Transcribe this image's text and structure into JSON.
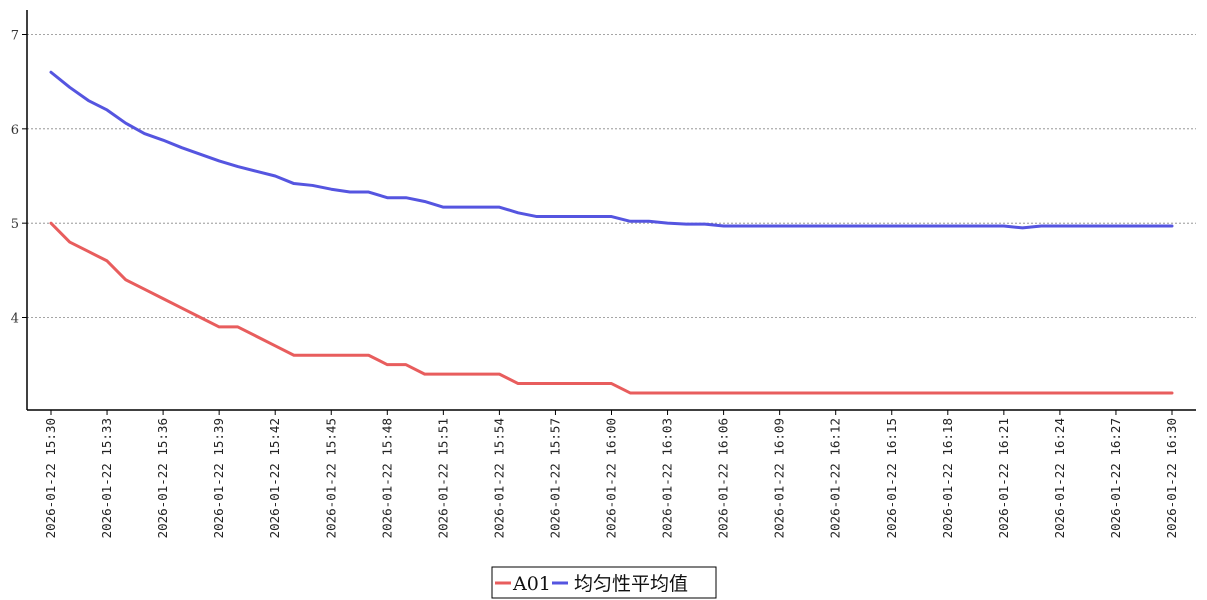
{
  "chart_data": {
    "type": "line",
    "title": "",
    "xlabel": "",
    "ylabel": "",
    "ylim": [
      2.9,
      7.25
    ],
    "yticks": [
      4,
      5,
      6,
      7
    ],
    "grid": "horizontal-dashed",
    "legend_placement": "bottom-center",
    "x": [
      "2026-01-22 15:30",
      "2026-01-22 15:31",
      "2026-01-22 15:32",
      "2026-01-22 15:33",
      "2026-01-22 15:34",
      "2026-01-22 15:35",
      "2026-01-22 15:36",
      "2026-01-22 15:37",
      "2026-01-22 15:38",
      "2026-01-22 15:39",
      "2026-01-22 15:40",
      "2026-01-22 15:41",
      "2026-01-22 15:42",
      "2026-01-22 15:43",
      "2026-01-22 15:44",
      "2026-01-22 15:45",
      "2026-01-22 15:46",
      "2026-01-22 15:47",
      "2026-01-22 15:48",
      "2026-01-22 15:49",
      "2026-01-22 15:50",
      "2026-01-22 15:51",
      "2026-01-22 15:52",
      "2026-01-22 15:53",
      "2026-01-22 15:54",
      "2026-01-22 15:55",
      "2026-01-22 15:56",
      "2026-01-22 15:57",
      "2026-01-22 15:58",
      "2026-01-22 15:59",
      "2026-01-22 16:00",
      "2026-01-22 16:01",
      "2026-01-22 16:02",
      "2026-01-22 16:03",
      "2026-01-22 16:04",
      "2026-01-22 16:05",
      "2026-01-22 16:06",
      "2026-01-22 16:07",
      "2026-01-22 16:08",
      "2026-01-22 16:09",
      "2026-01-22 16:10",
      "2026-01-22 16:11",
      "2026-01-22 16:12",
      "2026-01-22 16:13",
      "2026-01-22 16:14",
      "2026-01-22 16:15",
      "2026-01-22 16:16",
      "2026-01-22 16:17",
      "2026-01-22 16:18",
      "2026-01-22 16:19",
      "2026-01-22 16:20",
      "2026-01-22 16:21",
      "2026-01-22 16:22",
      "2026-01-22 16:23",
      "2026-01-22 16:24",
      "2026-01-22 16:25",
      "2026-01-22 16:26",
      "2026-01-22 16:27",
      "2026-01-22 16:28",
      "2026-01-22 16:29",
      "2026-01-22 16:30"
    ],
    "xtick_labels": [
      "2026-01-22 15:30",
      "2026-01-22 15:33",
      "2026-01-22 15:36",
      "2026-01-22 15:39",
      "2026-01-22 15:42",
      "2026-01-22 15:45",
      "2026-01-22 15:48",
      "2026-01-22 15:51",
      "2026-01-22 15:54",
      "2026-01-22 15:57",
      "2026-01-22 16:00",
      "2026-01-22 16:03",
      "2026-01-22 16:06",
      "2026-01-22 16:09",
      "2026-01-22 16:12",
      "2026-01-22 16:15",
      "2026-01-22 16:18",
      "2026-01-22 16:21",
      "2026-01-22 16:24",
      "2026-01-22 16:27",
      "2026-01-22 16:30"
    ],
    "series": [
      {
        "name": "A01",
        "color": "#e85d5d",
        "values": [
          5.0,
          4.8,
          4.7,
          4.6,
          4.4,
          4.3,
          4.2,
          4.1,
          4.0,
          3.9,
          3.9,
          3.8,
          3.7,
          3.6,
          3.6,
          3.6,
          3.6,
          3.6,
          3.5,
          3.5,
          3.4,
          3.4,
          3.4,
          3.4,
          3.4,
          3.3,
          3.3,
          3.3,
          3.3,
          3.3,
          3.3,
          3.2,
          3.2,
          3.2,
          3.2,
          3.2,
          3.2,
          3.2,
          3.2,
          3.2,
          3.2,
          3.2,
          3.2,
          3.2,
          3.2,
          3.2,
          3.2,
          3.2,
          3.2,
          3.2,
          3.2,
          3.2,
          3.2,
          3.2,
          3.2,
          3.2,
          3.2,
          3.2,
          3.2,
          3.2,
          3.2
        ]
      },
      {
        "name": "均匀性平均值",
        "color": "#5555e0",
        "values": [
          6.6,
          6.44,
          6.3,
          6.2,
          6.06,
          5.95,
          5.88,
          5.8,
          5.73,
          5.66,
          5.6,
          5.55,
          5.5,
          5.42,
          5.4,
          5.36,
          5.33,
          5.33,
          5.27,
          5.27,
          5.23,
          5.17,
          5.17,
          5.17,
          5.17,
          5.11,
          5.07,
          5.07,
          5.07,
          5.07,
          5.07,
          5.02,
          5.02,
          5.0,
          4.99,
          4.99,
          4.97,
          4.97,
          4.97,
          4.97,
          4.97,
          4.97,
          4.97,
          4.97,
          4.97,
          4.97,
          4.97,
          4.97,
          4.97,
          4.97,
          4.97,
          4.97,
          4.95,
          4.97,
          4.97,
          4.97,
          4.97,
          4.97,
          4.97,
          4.97,
          4.97
        ]
      }
    ]
  }
}
